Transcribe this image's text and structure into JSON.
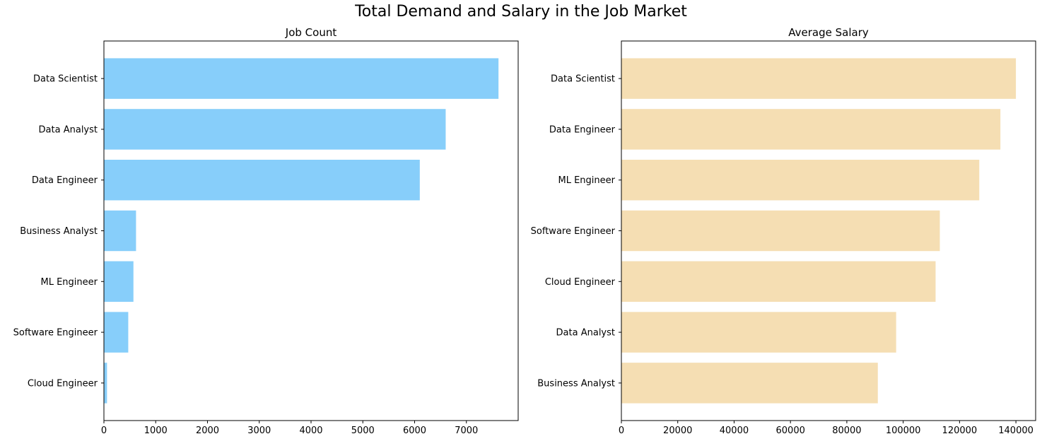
{
  "title": "Total Demand and Salary in the Job Market",
  "chart_data": [
    {
      "type": "bar",
      "orientation": "horizontal",
      "title": "Job Count",
      "xlabel": "",
      "ylabel": "",
      "categories": [
        "Data Scientist",
        "Data Analyst",
        "Data Engineer",
        "Business Analyst",
        "ML Engineer",
        "Software Engineer",
        "Cloud Engineer"
      ],
      "values": [
        7620,
        6600,
        6100,
        620,
        570,
        470,
        60
      ],
      "xlim": [
        0,
        8000
      ],
      "xticks": [
        "0",
        "1000",
        "2000",
        "3000",
        "4000",
        "5000",
        "6000",
        "7000"
      ],
      "color": "#87CEFA",
      "grid": false
    },
    {
      "type": "bar",
      "orientation": "horizontal",
      "title": "Average Salary",
      "xlabel": "",
      "ylabel": "",
      "categories": [
        "Data Scientist",
        "Data Engineer",
        "ML Engineer",
        "Software Engineer",
        "Cloud Engineer",
        "Data Analyst",
        "Business Analyst"
      ],
      "values": [
        140000,
        134500,
        127000,
        113000,
        111500,
        97500,
        91000
      ],
      "xlim": [
        0,
        147000
      ],
      "xticks": [
        "0",
        "20000",
        "40000",
        "60000",
        "80000",
        "100000",
        "120000",
        "140000"
      ],
      "color": "#F5DEB3",
      "grid": false
    }
  ]
}
